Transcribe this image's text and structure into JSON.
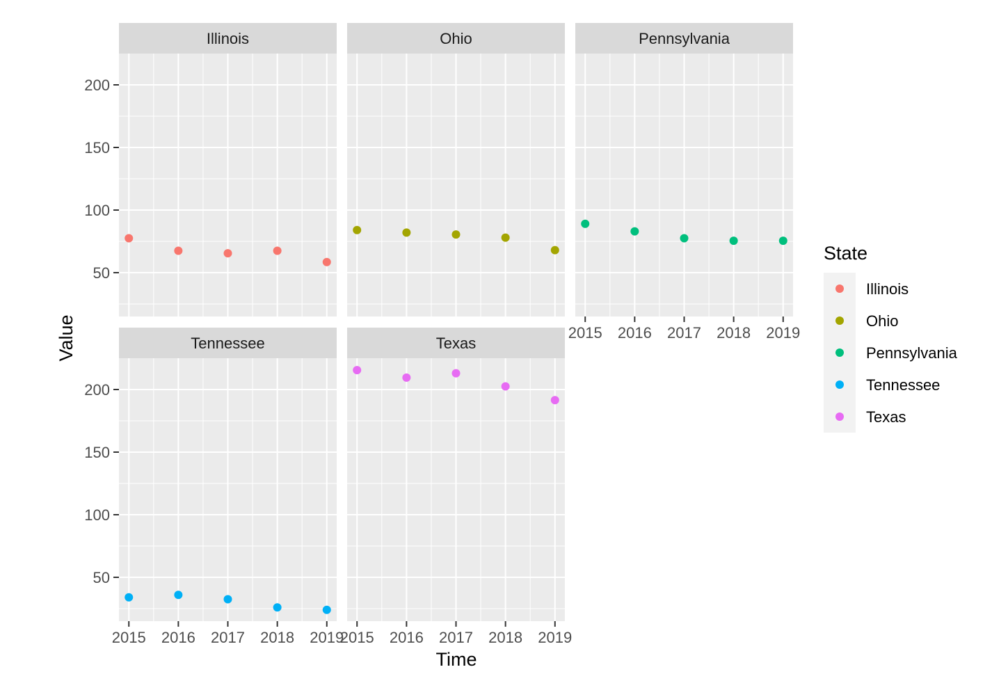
{
  "chart_data": {
    "type": "scatter",
    "facet_by": "State",
    "xlabel": "Time",
    "ylabel": "Value",
    "x_ticks": [
      2015,
      2016,
      2017,
      2018,
      2019
    ],
    "y_ticks": [
      50,
      100,
      150,
      200
    ],
    "xlim": [
      2014.8,
      2019.2
    ],
    "ylim": [
      15,
      225
    ],
    "grid": true,
    "legend": {
      "title": "State",
      "placement": "right"
    },
    "panels": [
      {
        "name": "Illinois",
        "color": "#F8766D",
        "x": [
          2015,
          2016,
          2017,
          2018,
          2019
        ],
        "y": [
          77.5,
          67.5,
          65.5,
          67.5,
          58.5
        ]
      },
      {
        "name": "Ohio",
        "color": "#A3A500",
        "x": [
          2015,
          2016,
          2017,
          2018,
          2019
        ],
        "y": [
          84,
          82,
          80.5,
          78,
          68
        ]
      },
      {
        "name": "Pennsylvania",
        "color": "#00BF7D",
        "x": [
          2015,
          2016,
          2017,
          2018,
          2019
        ],
        "y": [
          89,
          83,
          77.5,
          75.5,
          75.5
        ]
      },
      {
        "name": "Tennessee",
        "color": "#00B0F6",
        "x": [
          2015,
          2016,
          2017,
          2018,
          2019
        ],
        "y": [
          34,
          36,
          32.5,
          26,
          24
        ]
      },
      {
        "name": "Texas",
        "color": "#E76BF3",
        "x": [
          2015,
          2016,
          2017,
          2018,
          2019
        ],
        "y": [
          215.5,
          209.5,
          213,
          202.5,
          191.5
        ]
      }
    ]
  }
}
